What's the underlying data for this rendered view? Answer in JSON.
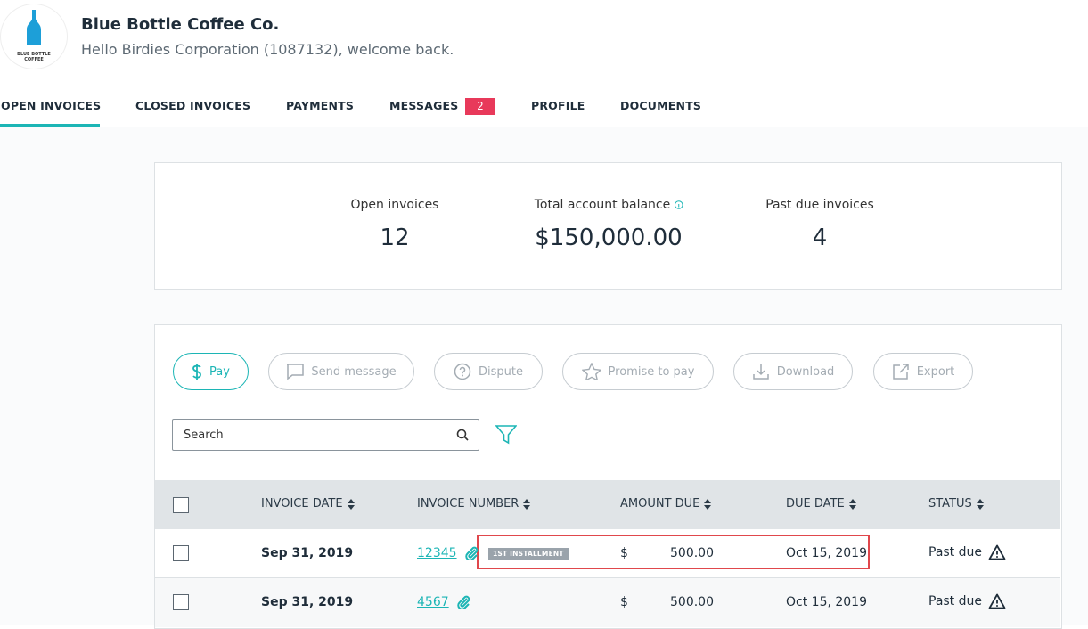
{
  "header": {
    "logo_lines": [
      "BLUE BOTTLE",
      "COFFEE"
    ],
    "company": "Blue Bottle Coffee Co.",
    "welcome": "Hello Birdies Corporation (1087132), welcome back."
  },
  "tabs": [
    {
      "label": "OPEN INVOICES"
    },
    {
      "label": "CLOSED INVOICES"
    },
    {
      "label": "PAYMENTS"
    },
    {
      "label": "MESSAGES",
      "badge": 2
    },
    {
      "label": "PROFILE"
    },
    {
      "label": "DOCUMENTS"
    }
  ],
  "summary": [
    {
      "label": "Open invoices",
      "value": "12"
    },
    {
      "label": "Total account balance",
      "value": "$150,000.00"
    },
    {
      "label": "Past due invoices",
      "value": "4"
    }
  ],
  "actions": [
    "Pay",
    "Send message",
    "Dispute",
    "Promise to pay",
    "Download",
    "Export"
  ],
  "search_placeholder": "Search",
  "table": {
    "columns": [
      "INVOICE DATE",
      "INVOICE NUMBER",
      "AMOUNT DUE",
      "DUE DATE",
      "STATUS"
    ],
    "rows": [
      {
        "invoice_date": "Sep 31, 2019",
        "invoice_number": "12345",
        "tag": "1ST INSTALLMENT",
        "currency": "$",
        "amount": "500.00",
        "due_date": "Oct 15, 2019",
        "status": "Past due"
      },
      {
        "invoice_date": "Sep 31, 2019",
        "invoice_number": "4567",
        "currency": "$",
        "amount": "500.00",
        "due_date": "Oct 15, 2019",
        "status": "Past due"
      }
    ]
  }
}
